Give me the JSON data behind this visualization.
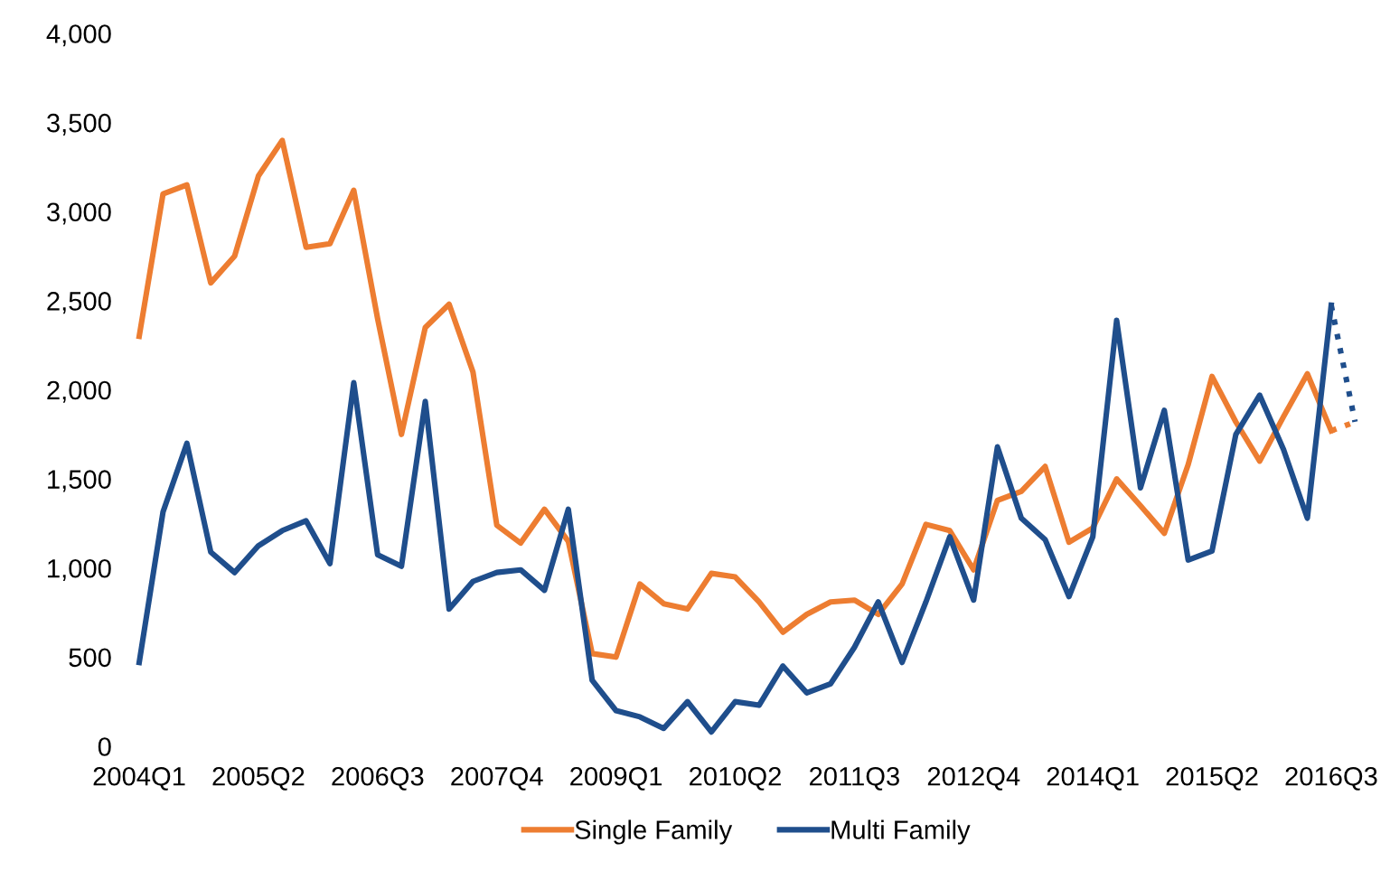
{
  "chart_data": {
    "type": "line",
    "categories": [
      "2004Q1",
      null,
      null,
      null,
      null,
      "2005Q2",
      null,
      null,
      null,
      null,
      "2006Q3",
      null,
      null,
      null,
      null,
      "2007Q4",
      null,
      null,
      null,
      null,
      "2009Q1",
      null,
      null,
      null,
      null,
      "2010Q2",
      null,
      null,
      null,
      null,
      "2011Q3",
      null,
      null,
      null,
      null,
      "2012Q4",
      null,
      null,
      null,
      null,
      "2014Q1",
      null,
      null,
      null,
      null,
      "2015Q2",
      null,
      null,
      null,
      null,
      "2016Q3",
      null
    ],
    "series": [
      {
        "name": "Single Family",
        "color": "#ed7d31",
        "values": [
          2300,
          3100,
          3150,
          2600,
          2750,
          3200,
          3400,
          2800,
          2820,
          3120,
          2400,
          1750,
          2350,
          2480,
          2100,
          1240,
          1140,
          1330,
          1150,
          520,
          500,
          910,
          800,
          770,
          970,
          950,
          810,
          640,
          740,
          810,
          820,
          740,
          910,
          1245,
          1210,
          990,
          1380,
          1430,
          1570,
          1145,
          1225,
          1500,
          1350,
          1195,
          1580,
          2075,
          1820,
          1600,
          1850,
          2090,
          1770,
          null
        ]
      },
      {
        "name": "Multi Family",
        "color": "#1f4e8c",
        "values": [
          470,
          1315,
          1700,
          1090,
          975,
          1125,
          1210,
          1265,
          1025,
          2040,
          1075,
          1010,
          1935,
          770,
          925,
          975,
          990,
          875,
          1330,
          370,
          200,
          165,
          100,
          250,
          80,
          250,
          230,
          450,
          300,
          350,
          555,
          810,
          470,
          810,
          1175,
          820,
          1680,
          1280,
          1160,
          840,
          1175,
          2390,
          1450,
          1885,
          1045,
          1095,
          1750,
          1970,
          1665,
          1280,
          2475,
          null
        ]
      },
      {
        "color": "#ed7d31",
        "line_style": "dotted",
        "values": [
          null,
          null,
          null,
          null,
          null,
          null,
          null,
          null,
          null,
          null,
          null,
          null,
          null,
          null,
          null,
          null,
          null,
          null,
          null,
          null,
          null,
          null,
          null,
          null,
          null,
          null,
          null,
          null,
          null,
          null,
          null,
          null,
          null,
          null,
          null,
          null,
          null,
          null,
          null,
          null,
          null,
          null,
          null,
          null,
          null,
          null,
          null,
          null,
          null,
          null,
          1770,
          1820
        ]
      },
      {
        "color": "#1f4e8c",
        "line_style": "dotted",
        "values": [
          null,
          null,
          null,
          null,
          null,
          null,
          null,
          null,
          null,
          null,
          null,
          null,
          null,
          null,
          null,
          null,
          null,
          null,
          null,
          null,
          null,
          null,
          null,
          null,
          null,
          null,
          null,
          null,
          null,
          null,
          null,
          null,
          null,
          null,
          null,
          null,
          null,
          null,
          null,
          null,
          null,
          null,
          null,
          null,
          null,
          null,
          null,
          null,
          null,
          null,
          2475,
          1820
        ]
      }
    ],
    "ylim": [
      0,
      4000
    ],
    "yticks": [
      0,
      500,
      {
        "value": 1000,
        "label": "1,000"
      },
      {
        "value": 1500,
        "label": "1,500"
      },
      {
        "value": 2000,
        "label": "2,000"
      },
      {
        "value": 2500,
        "label": "2,500"
      },
      {
        "value": 3000,
        "label": "3,000"
      },
      {
        "value": 3500,
        "label": "3,500"
      },
      {
        "value": 4000,
        "label": "4,000"
      }
    ],
    "grid": false,
    "legend": "bottom",
    "line_style": "solid",
    "marker": "none"
  }
}
